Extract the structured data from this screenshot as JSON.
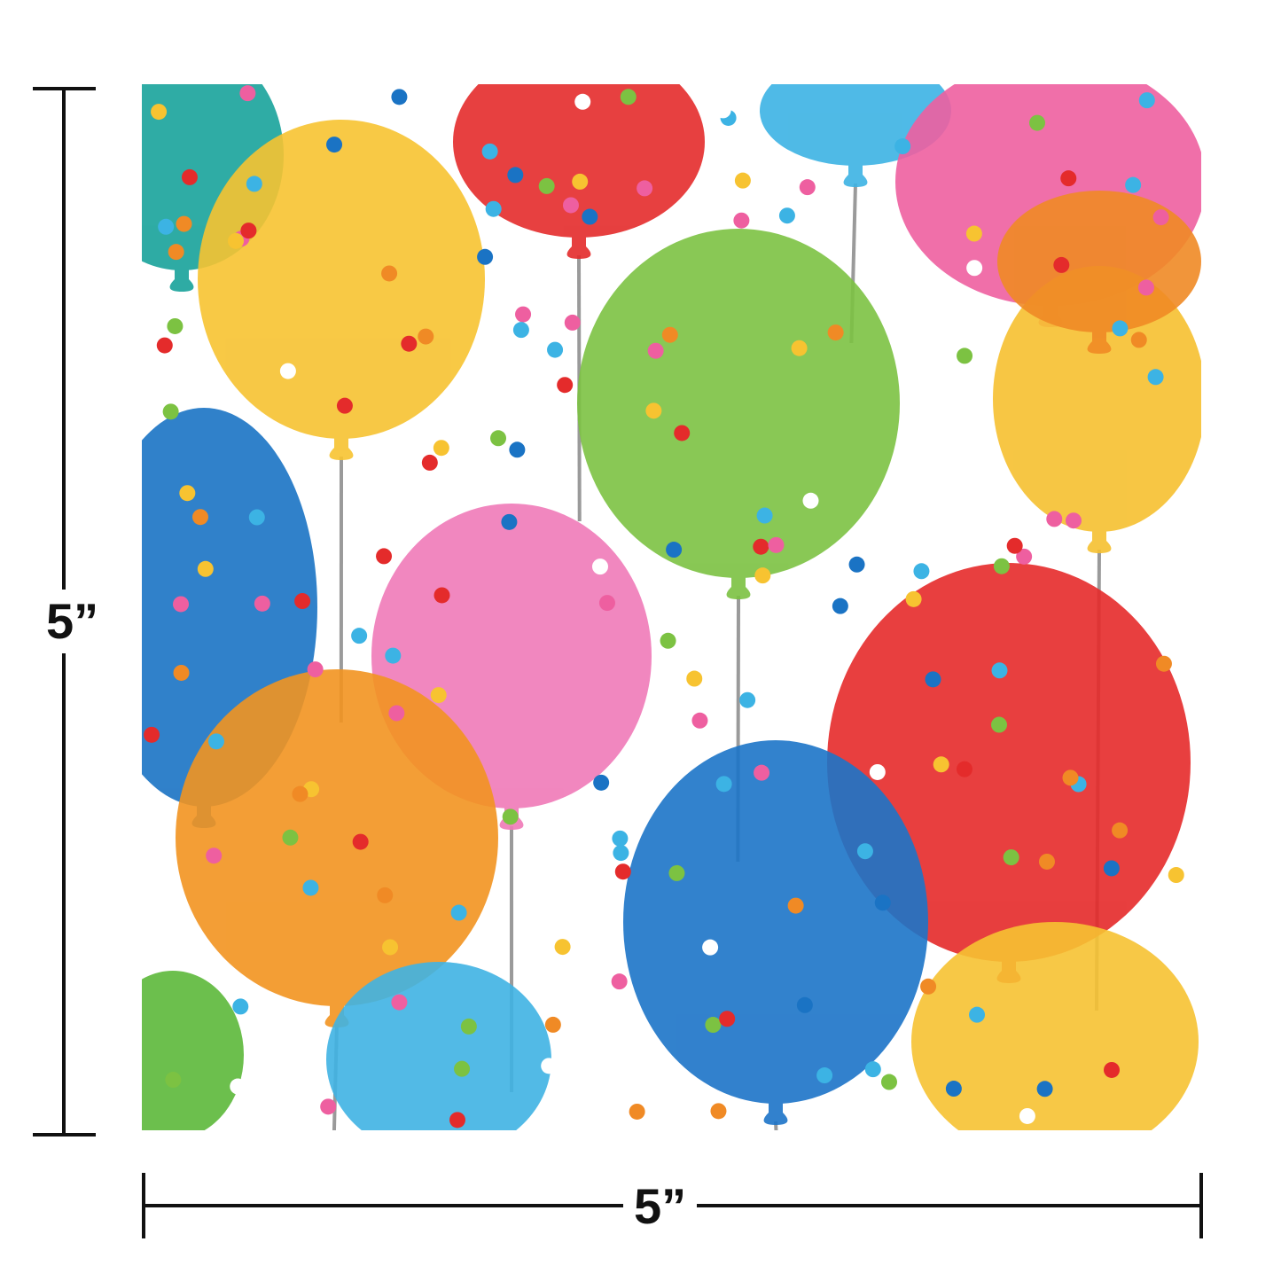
{
  "dimensions": {
    "height_label": "5”",
    "width_label": "5”"
  },
  "colors": {
    "background": "#ffffff",
    "napkin": "#ffffff",
    "dimension_line": "#111111",
    "string": "#9a9a9a",
    "balloons": [
      "#18a39b",
      "#f7c331",
      "#e42b2b",
      "#3cb3e4",
      "#ee5fa0",
      "#f08a25",
      "#f6c030",
      "#7cc242",
      "#1a73c4",
      "#f07ab8",
      "#f29420",
      "#e52a2a",
      "#1c74c8",
      "#f6c232",
      "#3fb3e3",
      "#5cb83a"
    ],
    "confetti": [
      "#e42b2b",
      "#f7c331",
      "#3cb3e4",
      "#ee5fa0",
      "#7cc242",
      "#f08a25",
      "#ffffff",
      "#1a73c4"
    ]
  }
}
